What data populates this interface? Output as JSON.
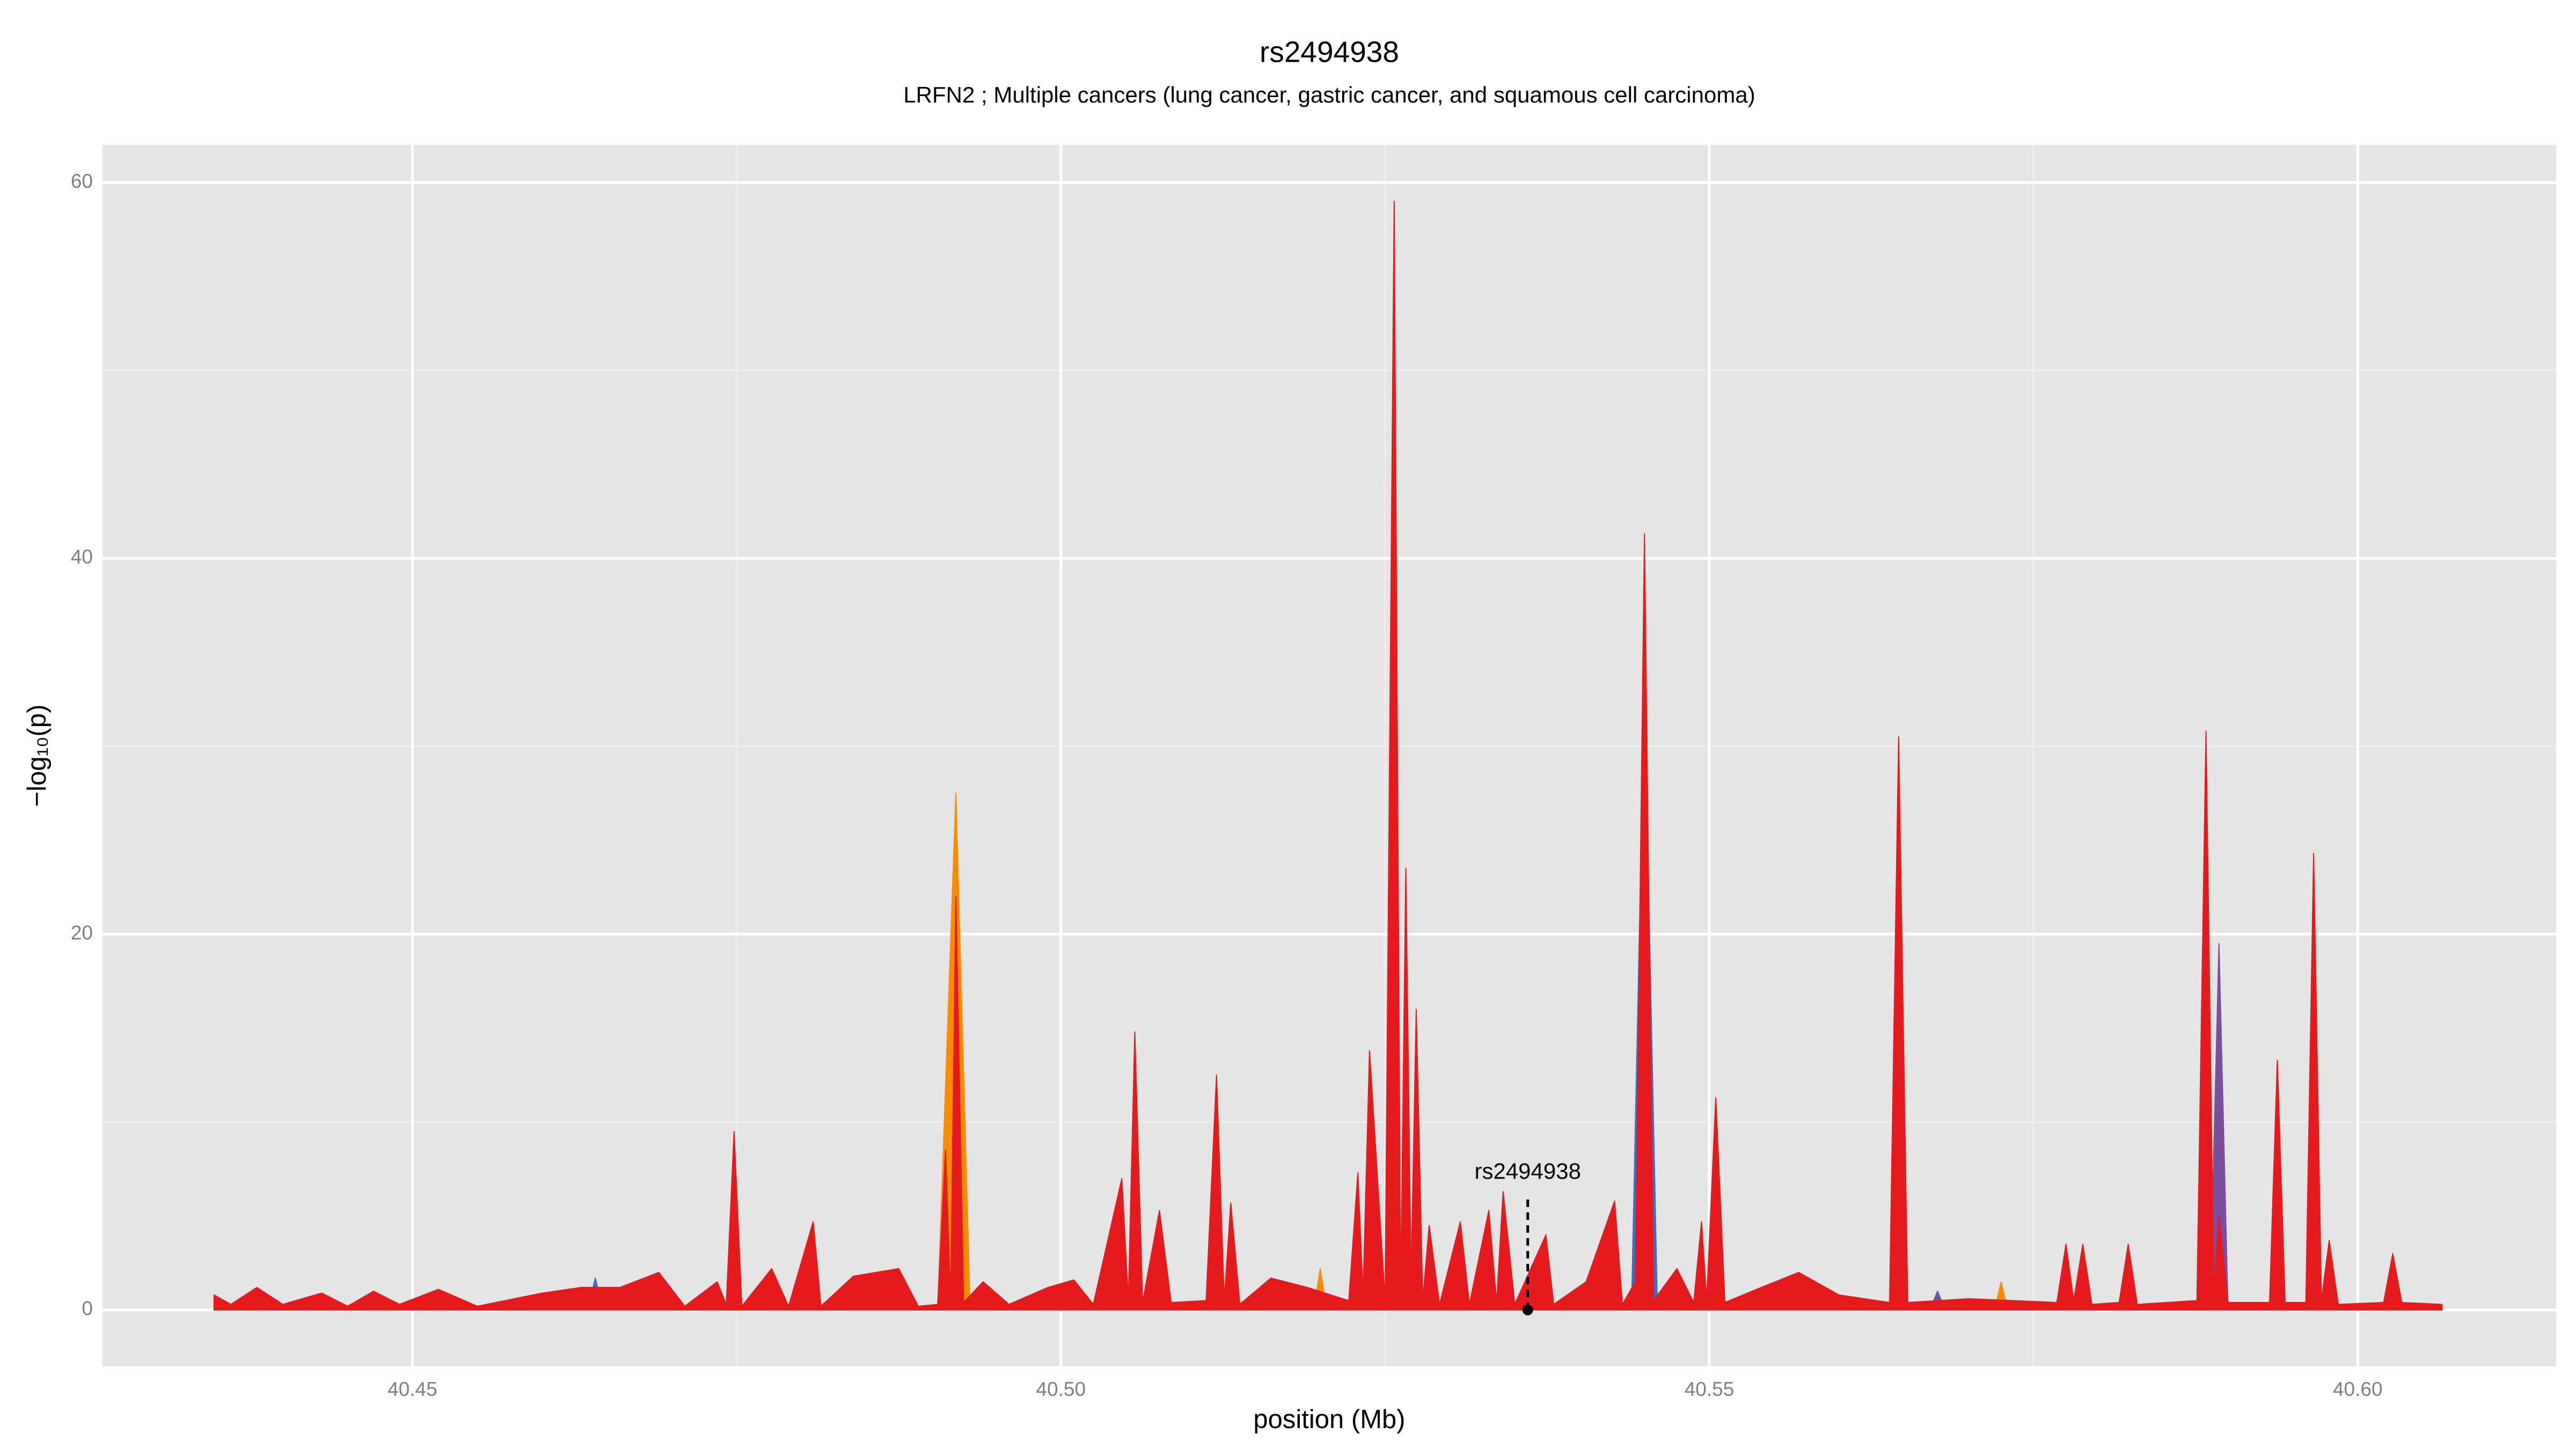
{
  "chart_data": {
    "type": "area",
    "title": "rs2494938",
    "subtitle": "LRFN2 ; Multiple cancers (lung cancer, gastric cancer, and squamous cell carcinoma)",
    "x_label": "position (Mb)",
    "y_label": "−log₁₀(p)",
    "xlim": [
      40.4261,
      40.6153
    ],
    "ylim": [
      -3,
      62
    ],
    "xticks": [
      40.45,
      {
        "value": 40.5,
        "label": "40.50"
      },
      40.55,
      {
        "value": 40.6,
        "label": "40.60"
      }
    ],
    "yticks": [
      0,
      20,
      40,
      60
    ],
    "xminorticks": [
      40.475,
      40.525,
      40.575
    ],
    "yminorticks": [
      10,
      30,
      50
    ],
    "grid": true,
    "series": [
      {
        "color": "#ff8c00",
        "x": [
          40.4905,
          40.4919,
          40.493,
          40.5195,
          40.52,
          40.5205,
          40.572,
          40.5725,
          40.573
        ],
        "values": [
          0,
          27.5,
          0,
          0,
          2.2,
          0,
          0,
          1.5,
          0
        ]
      },
      {
        "color": "#3a6fc4",
        "x": [
          40.4635,
          40.4641,
          40.4647,
          40.544,
          40.545,
          40.546,
          40.5155,
          40.5162,
          40.5169
        ],
        "values": [
          0,
          1.7,
          0,
          0,
          33,
          0,
          0,
          1.7,
          0
        ]
      },
      {
        "color": "#7b4fa0",
        "x": [
          40.5498,
          40.5505,
          40.5512,
          40.5886,
          40.5893,
          40.59,
          40.567,
          40.5676,
          40.5682
        ],
        "values": [
          0,
          10,
          0,
          0,
          19.5,
          0,
          0,
          1,
          0
        ]
      },
      {
        "color": "#e41a1c",
        "x": [
          40.4347,
          40.436,
          40.438,
          40.44,
          40.443,
          40.445,
          40.447,
          40.449,
          40.452,
          40.455,
          40.46,
          40.463,
          40.466,
          40.469,
          40.471,
          40.4735,
          40.4742,
          40.4748,
          40.4754,
          40.4777,
          40.479,
          40.4809,
          40.4815,
          40.484,
          40.4875,
          40.489,
          40.4905,
          40.4911,
          40.4915,
          40.4919,
          40.4925,
          40.494,
          40.496,
          40.499,
          40.501,
          40.5025,
          40.5047,
          40.5052,
          40.5057,
          40.5063,
          40.5076,
          40.5085,
          40.5112,
          40.512,
          40.5126,
          40.5131,
          40.5138,
          40.5162,
          40.519,
          40.5222,
          40.5229,
          40.5233,
          40.5238,
          40.525,
          40.5257,
          40.5262,
          40.5266,
          40.527,
          40.5274,
          40.5279,
          40.5284,
          40.5292,
          40.5308,
          40.5315,
          40.533,
          40.5336,
          40.5341,
          40.535,
          40.5374,
          40.538,
          40.5405,
          40.5427,
          40.5433,
          40.5443,
          40.545,
          40.5457,
          40.5475,
          40.5488,
          40.5494,
          40.5498,
          40.5505,
          40.5512,
          40.554,
          40.5569,
          40.56,
          40.5639,
          40.5646,
          40.5653,
          40.57,
          40.5768,
          40.5775,
          40.5781,
          40.5788,
          40.5795,
          40.5816,
          40.5823,
          40.583,
          40.5876,
          40.5883,
          40.5889,
          40.5893,
          40.59,
          40.5932,
          40.5938,
          40.5944,
          40.596,
          40.5966,
          40.5972,
          40.5978,
          40.5985,
          40.602,
          40.6027,
          40.6034,
          40.6065
        ],
        "values": [
          0.8,
          0.3,
          1.2,
          0.3,
          0.9,
          0.2,
          1.0,
          0.3,
          1.1,
          0.2,
          0.9,
          1.2,
          1.2,
          2.0,
          0.2,
          1.5,
          0.3,
          9.5,
          0.2,
          2.2,
          0.2,
          4.7,
          0.2,
          1.8,
          2.2,
          0.2,
          0.3,
          8.5,
          0.5,
          22,
          0.4,
          1.5,
          0.3,
          1.2,
          1.6,
          0.3,
          7,
          0.5,
          14.8,
          0.4,
          5.3,
          0.4,
          0.5,
          12.5,
          0.5,
          5.7,
          0.3,
          1.7,
          1.2,
          0.5,
          7.3,
          0.8,
          13.8,
          0.5,
          59,
          0.8,
          23.5,
          1.5,
          16,
          0.5,
          4.5,
          0.3,
          4.7,
          0.3,
          5.3,
          0.4,
          6.3,
          0.3,
          4,
          0.3,
          1.5,
          5.8,
          0.3,
          1.5,
          41.3,
          0.5,
          2.2,
          0.4,
          4.7,
          0.5,
          11.3,
          0.4,
          1.2,
          2,
          0.8,
          0.4,
          30.5,
          0.4,
          0.6,
          0.4,
          3.5,
          0.5,
          3.5,
          0.3,
          0.4,
          3.5,
          0.3,
          0.5,
          30.8,
          1,
          5,
          0.4,
          0.4,
          13.3,
          0.4,
          0.4,
          24.3,
          0.5,
          3.7,
          0.3,
          0.4,
          3,
          0.4,
          0.3
        ]
      }
    ],
    "annotation": {
      "text": "rs2494938",
      "x": 40.536,
      "y": 0
    }
  }
}
